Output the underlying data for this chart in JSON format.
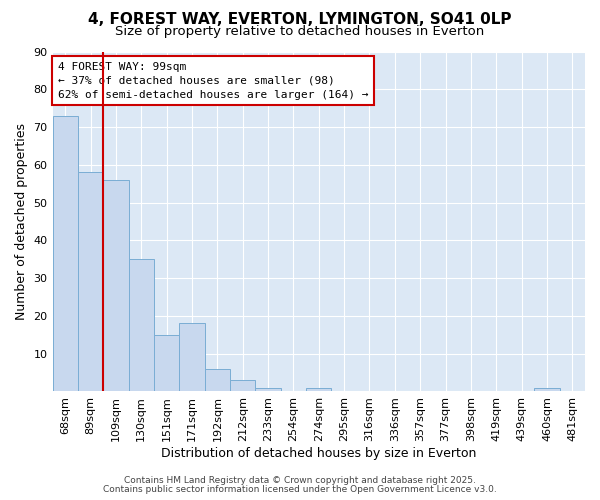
{
  "title1": "4, FOREST WAY, EVERTON, LYMINGTON, SO41 0LP",
  "title2": "Size of property relative to detached houses in Everton",
  "xlabel": "Distribution of detached houses by size in Everton",
  "ylabel": "Number of detached properties",
  "categories": [
    "68sqm",
    "89sqm",
    "109sqm",
    "130sqm",
    "151sqm",
    "171sqm",
    "192sqm",
    "212sqm",
    "233sqm",
    "254sqm",
    "274sqm",
    "295sqm",
    "316sqm",
    "336sqm",
    "357sqm",
    "377sqm",
    "398sqm",
    "419sqm",
    "439sqm",
    "460sqm",
    "481sqm"
  ],
  "values": [
    73,
    58,
    56,
    35,
    15,
    18,
    6,
    3,
    1,
    0,
    1,
    0,
    0,
    0,
    0,
    0,
    0,
    0,
    0,
    1,
    0
  ],
  "bar_color": "#c8d8ee",
  "bar_edge_color": "#7aadd4",
  "bg_color": "#ffffff",
  "plot_bg_color": "#dce8f5",
  "grid_color": "#ffffff",
  "red_line_index": 1,
  "annotation_text": "4 FOREST WAY: 99sqm\n← 37% of detached houses are smaller (98)\n62% of semi-detached houses are larger (164) →",
  "annotation_box_color": "#ffffff",
  "annotation_border_color": "#cc0000",
  "footer1": "Contains HM Land Registry data © Crown copyright and database right 2025.",
  "footer2": "Contains public sector information licensed under the Open Government Licence v3.0.",
  "ylim": [
    0,
    90
  ],
  "yticks": [
    0,
    10,
    20,
    30,
    40,
    50,
    60,
    70,
    80,
    90
  ],
  "title_fontsize": 11,
  "subtitle_fontsize": 9.5,
  "axis_label_fontsize": 9,
  "tick_fontsize": 8,
  "footer_fontsize": 6.5,
  "annotation_fontsize": 8
}
